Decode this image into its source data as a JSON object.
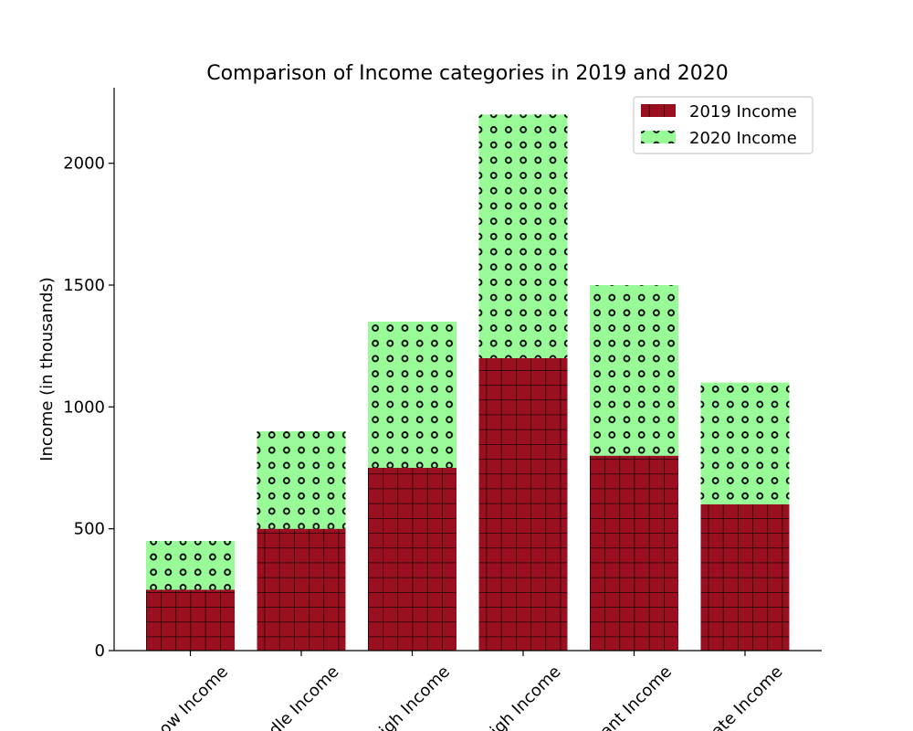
{
  "chart_data": {
    "type": "bar",
    "stacked": true,
    "title": "Comparison of Income categories in 2019 and 2020",
    "xlabel": "",
    "ylabel": "Income (in thousands)",
    "ylim": [
      0,
      2310
    ],
    "yticks": [
      0,
      500,
      1000,
      1500,
      2000
    ],
    "categories": [
      "ow Income",
      "dle Income",
      "igh Income",
      "igh Income",
      "ant Income",
      "ate Income"
    ],
    "series": [
      {
        "name": "2019 Income",
        "values": [
          250,
          500,
          750,
          1200,
          800,
          600
        ],
        "color": "#9b1020",
        "hatch": "grid"
      },
      {
        "name": "2020 Income",
        "values": [
          200,
          400,
          600,
          1000,
          700,
          500
        ],
        "color": "#98fb98",
        "hatch": "circles"
      }
    ],
    "legend": "top-right",
    "grid": false
  }
}
